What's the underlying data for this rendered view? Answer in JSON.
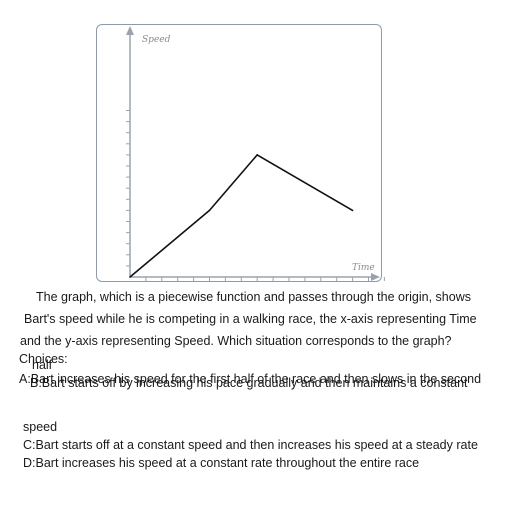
{
  "chart_data": {
    "type": "line",
    "xlabel": "Time",
    "ylabel": "Speed",
    "x": [
      0,
      5,
      8,
      14
    ],
    "y": [
      0,
      6,
      11,
      6
    ],
    "xlim": [
      0,
      16
    ],
    "ylim": [
      0,
      15
    ],
    "x_ticks": 16,
    "y_ticks": 15,
    "grid": false,
    "line_color": "#111111",
    "axis_color": "#9aa3ad"
  },
  "question": {
    "line1": "The graph, which is a piecewise function and passes through the origin, shows",
    "line2": "Bart's speed while he is competing in a walking race, the x-axis representing Time",
    "line3": "and the y-axis representing Speed. Which situation corresponds to the graph?",
    "choices_label": "Choices:",
    "choice_a": "A:Bart increases his speed for the first half of the race and then slows in the second",
    "choice_a_cont": "half",
    "choice_b": "B:Bart starts off by increasing his pace gradually and then maintains a constant",
    "choice_b_cont": "speed",
    "choice_c": "C:Bart starts off at a constant speed and then increases his speed at a steady rate",
    "choice_d": "D:Bart increases his speed at a constant rate throughout the entire race"
  }
}
